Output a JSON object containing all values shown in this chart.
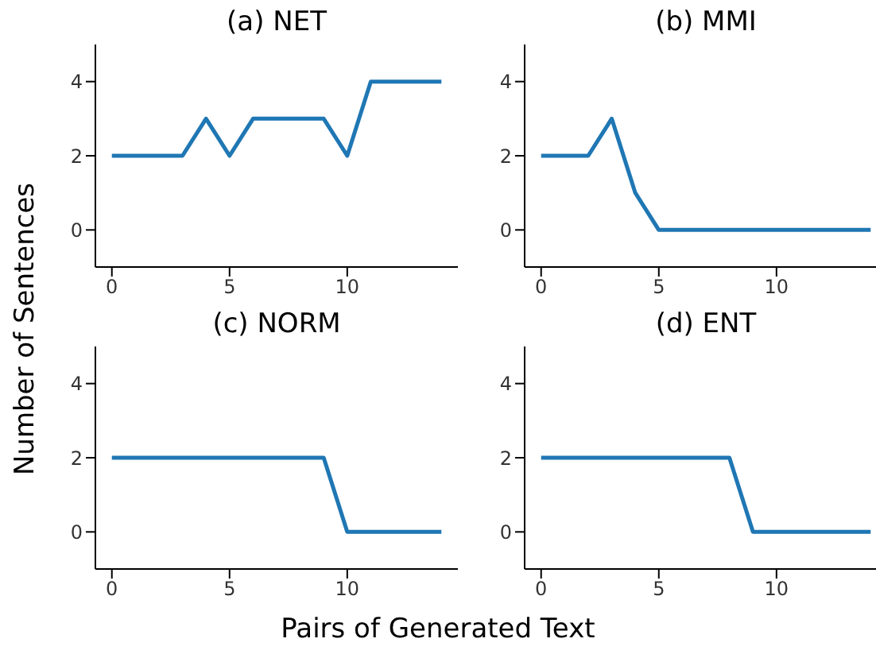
{
  "chart_data": [
    {
      "type": "line",
      "title": "(a) NET",
      "ylabel": "Number of Sentences",
      "x": [
        0,
        1,
        2,
        3,
        4,
        5,
        6,
        7,
        8,
        9,
        10,
        11,
        12,
        13,
        14
      ],
      "series": [
        {
          "color": "#1f77b4",
          "values": [
            2,
            2,
            2,
            2,
            3,
            2,
            3,
            3,
            3,
            3,
            2,
            4,
            4,
            4,
            4
          ]
        }
      ],
      "xlim": [
        -0.7,
        14.7
      ],
      "ylim": [
        -1,
        5
      ],
      "xticks": [
        0,
        5,
        10
      ],
      "yticks": [
        0,
        2,
        4
      ],
      "grid": false,
      "legend": false
    },
    {
      "type": "line",
      "title": "(b) MMI",
      "x": [
        0,
        1,
        2,
        3,
        4,
        5,
        6,
        7,
        8,
        9,
        10,
        11,
        12,
        13,
        14
      ],
      "series": [
        {
          "color": "#1f77b4",
          "values": [
            2,
            2,
            2,
            3,
            1,
            0,
            0,
            0,
            0,
            0,
            0,
            0,
            0,
            0,
            0
          ]
        }
      ],
      "xlim": [
        -0.7,
        14.7
      ],
      "ylim": [
        -1,
        5
      ],
      "xticks": [
        0,
        5,
        10
      ],
      "yticks": [
        0,
        2,
        4
      ],
      "grid": false,
      "legend": false
    },
    {
      "type": "line",
      "title": "(c) NORM",
      "xlabel": "Pairs of Generated Text",
      "x": [
        0,
        1,
        2,
        3,
        4,
        5,
        6,
        7,
        8,
        9,
        10,
        11,
        12,
        13,
        14
      ],
      "series": [
        {
          "color": "#1f77b4",
          "values": [
            2,
            2,
            2,
            2,
            2,
            2,
            2,
            2,
            2,
            2,
            0,
            0,
            0,
            0,
            0
          ]
        }
      ],
      "xlim": [
        -0.7,
        14.7
      ],
      "ylim": [
        -1,
        5
      ],
      "xticks": [
        0,
        5,
        10
      ],
      "yticks": [
        0,
        2,
        4
      ],
      "grid": false,
      "legend": false
    },
    {
      "type": "line",
      "title": "(d) ENT",
      "x": [
        0,
        1,
        2,
        3,
        4,
        5,
        6,
        7,
        8,
        9,
        10,
        11,
        12,
        13,
        14
      ],
      "series": [
        {
          "color": "#1f77b4",
          "values": [
            2,
            2,
            2,
            2,
            2,
            2,
            2,
            2,
            2,
            0,
            0,
            0,
            0,
            0,
            0
          ]
        }
      ],
      "xlim": [
        -0.7,
        14.7
      ],
      "ylim": [
        -1,
        5
      ],
      "xticks": [
        0,
        5,
        10
      ],
      "yticks": [
        0,
        2,
        4
      ],
      "grid": false,
      "legend": false
    }
  ]
}
